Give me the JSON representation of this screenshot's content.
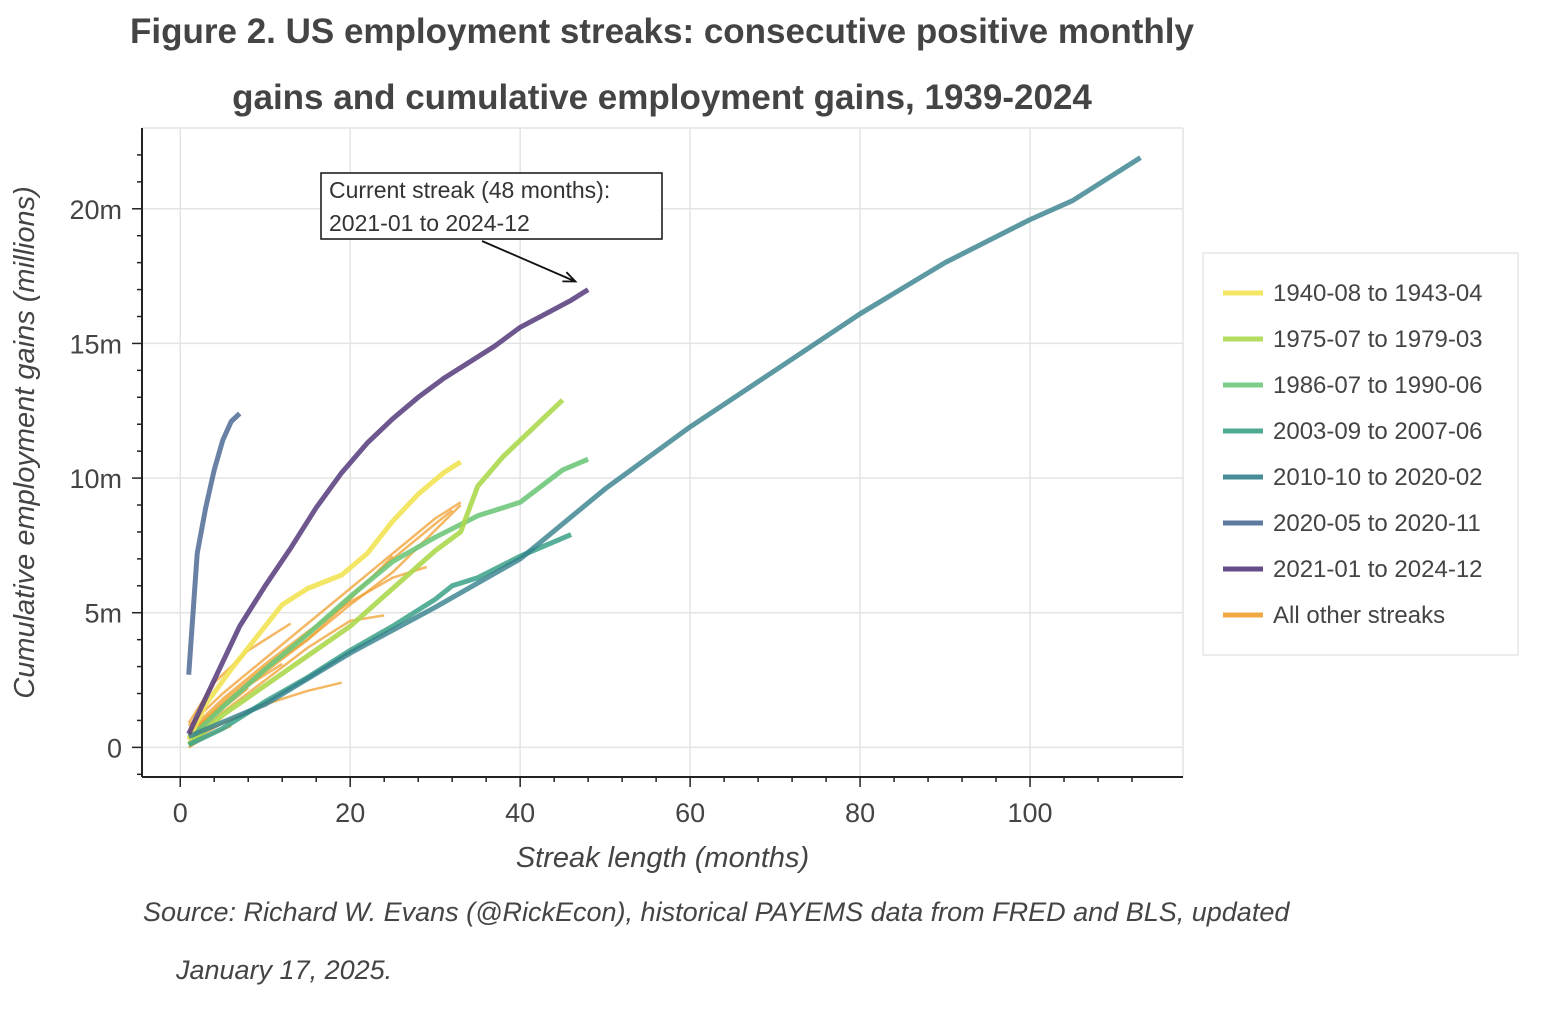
{
  "figure": {
    "title_line1": "Figure 2. US employment streaks: consecutive positive monthly",
    "title_line2": "gains and cumulative employment gains, 1939-2024",
    "source_line1": "Source: Richard W. Evans (@RickEcon), historical PAYEMS data from FRED and BLS, updated",
    "source_line2": "January 17, 2025."
  },
  "chart_data": {
    "type": "line",
    "xlabel": "Streak length (months)",
    "ylabel": "Cumulative employment gains (millions)",
    "xlim": [
      -4.5,
      118
    ],
    "ylim": [
      -1.1,
      23.0
    ],
    "xticks": [
      {
        "v": 0,
        "label": "0"
      },
      {
        "v": 20,
        "label": "20"
      },
      {
        "v": 40,
        "label": "40"
      },
      {
        "v": 60,
        "label": "60"
      },
      {
        "v": 80,
        "label": "80"
      },
      {
        "v": 100,
        "label": "100"
      }
    ],
    "yticks": [
      {
        "v": 0,
        "label": "0"
      },
      {
        "v": 5,
        "label": "5m"
      },
      {
        "v": 10,
        "label": "10m"
      },
      {
        "v": 15,
        "label": "15m"
      },
      {
        "v": 20,
        "label": "20m"
      }
    ],
    "grid": true,
    "legend_position": "right",
    "annotation": {
      "line1": "Current streak (48 months):",
      "line2": "2021-01 to 2024-12",
      "target": [
        46.5,
        17.3
      ]
    },
    "series": [
      {
        "name": "All other streaks",
        "legend": false,
        "color": "#f0a030",
        "width": 2.5,
        "opacity": 0.75,
        "x": [
          1,
          5,
          10,
          15,
          20,
          25,
          30,
          33
        ],
        "y": [
          0.8,
          2.0,
          3.3,
          4.6,
          5.9,
          7.2,
          8.5,
          9.1
        ]
      },
      {
        "name": "All other streaks",
        "legend": false,
        "color": "#f0a030",
        "width": 2.5,
        "opacity": 0.75,
        "x": [
          1,
          5,
          10,
          15,
          20,
          25,
          30,
          32
        ],
        "y": [
          0.5,
          1.7,
          3.0,
          4.2,
          5.6,
          7.0,
          8.3,
          8.8
        ]
      },
      {
        "name": "All other streaks",
        "legend": false,
        "color": "#f0a030",
        "width": 2.5,
        "opacity": 0.75,
        "x": [
          1,
          5,
          10,
          15,
          20,
          25,
          29
        ],
        "y": [
          0.6,
          1.8,
          3.1,
          4.3,
          5.4,
          6.3,
          6.7
        ]
      },
      {
        "name": "All other streaks",
        "legend": false,
        "color": "#f0a030",
        "width": 2.5,
        "opacity": 0.75,
        "x": [
          1,
          5,
          10,
          15,
          20,
          25
        ],
        "y": [
          0.4,
          1.5,
          2.8,
          4.0,
          5.5,
          7.1
        ]
      },
      {
        "name": "All other streaks",
        "legend": false,
        "color": "#f0a030",
        "width": 2.5,
        "opacity": 0.75,
        "x": [
          1,
          5,
          10,
          15,
          20,
          24
        ],
        "y": [
          0.3,
          1.3,
          2.5,
          3.7,
          4.7,
          4.9
        ]
      },
      {
        "name": "All other streaks",
        "legend": false,
        "color": "#f0a030",
        "width": 2.5,
        "opacity": 0.75,
        "x": [
          1,
          5,
          10,
          15,
          19
        ],
        "y": [
          0.2,
          0.9,
          1.6,
          2.1,
          2.4
        ]
      },
      {
        "name": "All other streaks",
        "legend": false,
        "color": "#f0a030",
        "width": 2.5,
        "opacity": 0.75,
        "x": [
          1,
          5,
          10,
          15
        ],
        "y": [
          0.4,
          1.6,
          2.9,
          4.2
        ]
      },
      {
        "name": "All other streaks",
        "legend": false,
        "color": "#f0a030",
        "width": 2.5,
        "opacity": 0.75,
        "x": [
          1,
          4,
          8,
          13
        ],
        "y": [
          0.9,
          2.4,
          3.6,
          4.6
        ]
      },
      {
        "name": "All other streaks",
        "legend": false,
        "color": "#f0a030",
        "width": 2.5,
        "opacity": 0.75,
        "x": [
          1,
          4,
          8,
          12
        ],
        "y": [
          0.5,
          1.3,
          2.3,
          3.1
        ]
      },
      {
        "name": "All other streaks",
        "legend": false,
        "color": "#f0a030",
        "width": 2.5,
        "opacity": 0.75,
        "x": [
          1,
          4,
          8
        ],
        "y": [
          0.3,
          1.2,
          2.2
        ]
      },
      {
        "name": "All other streaks",
        "legend": false,
        "color": "#f0a030",
        "width": 2.5,
        "opacity": 0.75,
        "x": [
          1,
          3,
          6
        ],
        "y": [
          0.0,
          0.4,
          0.8
        ]
      },
      {
        "name": "All other streaks",
        "legend": false,
        "color": "#f0a030",
        "width": 2.5,
        "opacity": 0.75,
        "x": [
          1,
          5,
          10,
          15,
          20,
          25,
          33
        ],
        "y": [
          0.5,
          1.6,
          2.9,
          4.0,
          5.3,
          6.5,
          9.0
        ]
      },
      {
        "name": "1986-07 to 1990-06",
        "legend": true,
        "color": "#6fc87b",
        "width": 5,
        "opacity": 0.9,
        "x": [
          1,
          5,
          10,
          15,
          20,
          25,
          30,
          35,
          40,
          45,
          48
        ],
        "y": [
          0.3,
          1.5,
          2.9,
          4.2,
          5.6,
          6.9,
          7.8,
          8.6,
          9.1,
          10.3,
          10.7
        ]
      },
      {
        "name": "1975-07 to 1979-03",
        "legend": true,
        "color": "#acd84e",
        "width": 5,
        "opacity": 0.9,
        "x": [
          1,
          5,
          10,
          15,
          20,
          25,
          30,
          33,
          35,
          38,
          42,
          45
        ],
        "y": [
          0.1,
          1.2,
          2.3,
          3.4,
          4.5,
          5.9,
          7.3,
          8.0,
          9.7,
          10.8,
          12.0,
          12.9
        ]
      },
      {
        "name": "1940-08 to 1943-04",
        "legend": true,
        "color": "#f2e354",
        "width": 5,
        "opacity": 0.9,
        "x": [
          1,
          3,
          6,
          9,
          12,
          15,
          19,
          22,
          25,
          28,
          31,
          33
        ],
        "y": [
          0.3,
          1.6,
          2.9,
          4.1,
          5.3,
          5.9,
          6.4,
          7.2,
          8.4,
          9.4,
          10.2,
          10.6
        ]
      },
      {
        "name": "2003-09 to 2007-06",
        "legend": true,
        "color": "#3aa187",
        "width": 5,
        "opacity": 0.85,
        "x": [
          1,
          5,
          10,
          15,
          20,
          25,
          30,
          32,
          35,
          40,
          46
        ],
        "y": [
          0.1,
          0.7,
          1.7,
          2.6,
          3.6,
          4.5,
          5.5,
          6.0,
          6.3,
          7.1,
          7.9
        ]
      },
      {
        "name": "2010-10 to 2020-02",
        "legend": true,
        "color": "#337f8c",
        "width": 5,
        "opacity": 0.8,
        "x": [
          1,
          10,
          20,
          30,
          40,
          50,
          60,
          70,
          80,
          90,
          100,
          105,
          113
        ],
        "y": [
          0.4,
          1.6,
          3.5,
          5.2,
          7.0,
          9.6,
          11.9,
          14.0,
          16.1,
          18.0,
          19.6,
          20.3,
          21.9
        ]
      },
      {
        "name": "2020-05 to 2020-11",
        "legend": true,
        "color": "#4e6b95",
        "width": 5,
        "opacity": 0.85,
        "x": [
          1,
          2,
          3,
          4,
          5,
          6,
          7
        ],
        "y": [
          2.7,
          7.2,
          8.9,
          10.3,
          11.4,
          12.1,
          12.4
        ]
      },
      {
        "name": "2021-01 to 2024-12",
        "legend": true,
        "color": "#55397b",
        "width": 5,
        "opacity": 0.85,
        "x": [
          1,
          4,
          7,
          10,
          13,
          16,
          19,
          22,
          25,
          28,
          31,
          34,
          37,
          40,
          43,
          46,
          48
        ],
        "y": [
          0.5,
          2.5,
          4.5,
          6.0,
          7.4,
          8.9,
          10.2,
          11.3,
          12.2,
          13.0,
          13.7,
          14.3,
          14.9,
          15.6,
          16.1,
          16.6,
          17.0
        ]
      }
    ],
    "legend": [
      {
        "label": "1940-08 to 1943-04",
        "color": "#f2e354"
      },
      {
        "label": "1975-07 to 1979-03",
        "color": "#acd84e"
      },
      {
        "label": "1986-07 to 1990-06",
        "color": "#6fc87b"
      },
      {
        "label": "2003-09 to 2007-06",
        "color": "#3aa187"
      },
      {
        "label": "2010-10 to 2020-02",
        "color": "#337f8c"
      },
      {
        "label": "2020-05 to 2020-11",
        "color": "#4e6b95"
      },
      {
        "label": "2021-01 to 2024-12",
        "color": "#55397b"
      },
      {
        "label": "All other streaks",
        "color": "#f0a030"
      }
    ]
  }
}
